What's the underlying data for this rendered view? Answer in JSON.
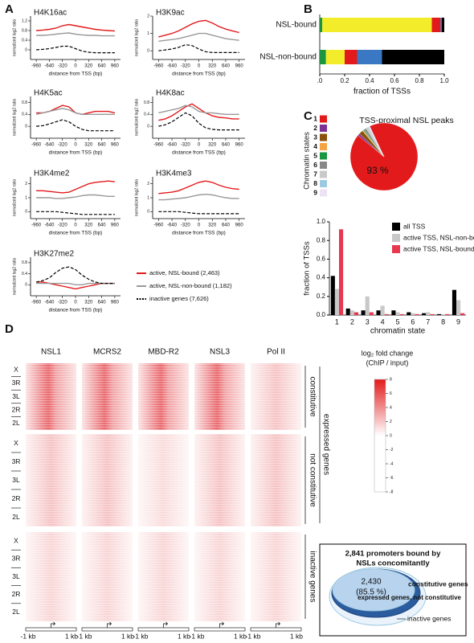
{
  "panel_labels": [
    "A",
    "B",
    "C",
    "D"
  ],
  "legend_a": [
    {
      "name": "active, NSL-bound (2,463)",
      "color": "#e31a1c",
      "dash": false
    },
    {
      "name": "active, NSL-non-bound (1,182)",
      "color": "#999999",
      "dash": false
    },
    {
      "name": "inactive genes (7,626)",
      "color": "#000000",
      "dash": true
    }
  ],
  "chart_data": [
    {
      "type": "line",
      "title": "H4K16ac",
      "y_label": "normalized log2 ratio",
      "x_label": "distance from TSS (bp)",
      "x": [
        -960,
        -800,
        -640,
        -480,
        -320,
        -160,
        0,
        160,
        320,
        480,
        640,
        800,
        960
      ],
      "xlim": [
        -1100,
        1100
      ],
      "xticks": [
        -960,
        -640,
        -320,
        0,
        320,
        640,
        960
      ],
      "ylim": [
        -0.4,
        1.4
      ],
      "yticks": [
        0,
        0.4,
        0.8,
        1.2
      ],
      "series": [
        {
          "color": "#e31a1c",
          "dash": false,
          "values": [
            0.8,
            0.82,
            0.85,
            0.9,
            1.0,
            1.05,
            1.0,
            0.95,
            0.9,
            0.85,
            0.82,
            0.8,
            0.78
          ]
        },
        {
          "color": "#999999",
          "dash": false,
          "values": [
            0.6,
            0.6,
            0.62,
            0.65,
            0.68,
            0.7,
            0.65,
            0.62,
            0.6,
            0.6,
            0.58,
            0.58,
            0.58
          ]
        },
        {
          "color": "#000000",
          "dash": true,
          "values": [
            0,
            0.02,
            0.05,
            0.1,
            0.15,
            0.15,
            0.05,
            -0.05,
            -0.1,
            -0.12,
            -0.12,
            -0.12,
            -0.12
          ]
        }
      ]
    },
    {
      "type": "line",
      "title": "H3K9ac",
      "y_label": "normalized log2 ratio",
      "x_label": "distance from TSS (bp)",
      "x": [
        -960,
        -800,
        -640,
        -480,
        -320,
        -160,
        0,
        160,
        320,
        480,
        640,
        800,
        960
      ],
      "xlim": [
        -1100,
        1100
      ],
      "xticks": [
        -960,
        -640,
        -320,
        0,
        320,
        640,
        960
      ],
      "ylim": [
        -0.5,
        2.0
      ],
      "yticks": [
        0,
        1,
        2
      ],
      "series": [
        {
          "color": "#e31a1c",
          "dash": false,
          "values": [
            0.8,
            0.9,
            1.0,
            1.15,
            1.35,
            1.55,
            1.7,
            1.75,
            1.6,
            1.4,
            1.25,
            1.15,
            1.05
          ]
        },
        {
          "color": "#999999",
          "dash": false,
          "values": [
            0.55,
            0.6,
            0.65,
            0.7,
            0.8,
            0.9,
            1.0,
            1.0,
            0.9,
            0.8,
            0.7,
            0.65,
            0.6
          ]
        },
        {
          "color": "#000000",
          "dash": true,
          "values": [
            0,
            0.05,
            0.1,
            0.2,
            0.35,
            0.3,
            0.1,
            -0.05,
            -0.1,
            -0.1,
            -0.1,
            -0.1,
            -0.1
          ]
        }
      ]
    },
    {
      "type": "line",
      "title": "H4K5ac",
      "y_label": "normalized log2 ratio",
      "x_label": "distance from TSS (bp)",
      "x": [
        -960,
        -800,
        -640,
        -480,
        -320,
        -160,
        0,
        160,
        320,
        480,
        640,
        800,
        960
      ],
      "xlim": [
        -1100,
        1100
      ],
      "xticks": [
        -960,
        -640,
        -320,
        0,
        320,
        640,
        960
      ],
      "ylim": [
        -0.4,
        1.0
      ],
      "yticks": [
        0,
        0.4,
        0.8
      ],
      "series": [
        {
          "color": "#e31a1c",
          "dash": false,
          "values": [
            0.45,
            0.45,
            0.5,
            0.6,
            0.7,
            0.65,
            0.45,
            0.4,
            0.45,
            0.5,
            0.5,
            0.5,
            0.45
          ]
        },
        {
          "color": "#999999",
          "dash": false,
          "values": [
            0.4,
            0.45,
            0.5,
            0.55,
            0.6,
            0.55,
            0.45,
            0.4,
            0.4,
            0.4,
            0.4,
            0.4,
            0.4
          ]
        },
        {
          "color": "#000000",
          "dash": true,
          "values": [
            0,
            0.02,
            0.08,
            0.15,
            0.22,
            0.15,
            0,
            -0.1,
            -0.15,
            -0.15,
            -0.15,
            -0.15,
            -0.15
          ]
        }
      ]
    },
    {
      "type": "line",
      "title": "H4K8ac",
      "y_label": "normalized log2 ratio",
      "x_label": "distance from TSS (bp)",
      "x": [
        -960,
        -800,
        -640,
        -480,
        -320,
        -160,
        0,
        160,
        320,
        480,
        640,
        800,
        960
      ],
      "xlim": [
        -1100,
        1100
      ],
      "xticks": [
        -960,
        -640,
        -320,
        0,
        320,
        640,
        960
      ],
      "ylim": [
        -0.4,
        1.0
      ],
      "yticks": [
        0,
        0.4,
        0.8
      ],
      "series": [
        {
          "color": "#e31a1c",
          "dash": false,
          "values": [
            0.2,
            0.25,
            0.35,
            0.5,
            0.65,
            0.75,
            0.6,
            0.45,
            0.35,
            0.3,
            0.28,
            0.25,
            0.25
          ]
        },
        {
          "color": "#999999",
          "dash": false,
          "values": [
            0.45,
            0.5,
            0.55,
            0.6,
            0.7,
            0.65,
            0.5,
            0.45,
            0.45,
            0.42,
            0.4,
            0.4,
            0.4
          ]
        },
        {
          "color": "#000000",
          "dash": true,
          "values": [
            0,
            0.05,
            0.15,
            0.3,
            0.45,
            0.35,
            0.1,
            -0.05,
            -0.1,
            -0.12,
            -0.12,
            -0.12,
            -0.12
          ]
        }
      ]
    },
    {
      "type": "line",
      "title": "H3K4me2",
      "y_label": "normalized log2 ratio",
      "x_label": "distance from TSS (bp)",
      "x": [
        -960,
        -800,
        -640,
        -480,
        -320,
        -160,
        0,
        160,
        320,
        480,
        640,
        800,
        960
      ],
      "xlim": [
        -1100,
        1100
      ],
      "xticks": [
        -960,
        -640,
        -320,
        0,
        320,
        640,
        960
      ],
      "ylim": [
        -0.5,
        2.5
      ],
      "yticks": [
        0,
        1,
        2
      ],
      "series": [
        {
          "color": "#e31a1c",
          "dash": false,
          "values": [
            1.5,
            1.5,
            1.45,
            1.4,
            1.35,
            1.4,
            1.6,
            1.8,
            2.0,
            2.1,
            2.15,
            2.2,
            2.15
          ]
        },
        {
          "color": "#999999",
          "dash": false,
          "values": [
            1.0,
            1.0,
            1.0,
            0.95,
            0.95,
            1.0,
            1.05,
            1.15,
            1.2,
            1.2,
            1.15,
            1.1,
            1.1
          ]
        },
        {
          "color": "#000000",
          "dash": true,
          "values": [
            0,
            0,
            0,
            0,
            -0.05,
            -0.1,
            -0.15,
            -0.2,
            -0.2,
            -0.2,
            -0.2,
            -0.2,
            -0.2
          ]
        }
      ]
    },
    {
      "type": "line",
      "title": "H3K4me3",
      "y_label": "normalized log2 ratio",
      "x_label": "distance from TSS (bp)",
      "x": [
        -960,
        -800,
        -640,
        -480,
        -320,
        -160,
        0,
        160,
        320,
        480,
        640,
        800,
        960
      ],
      "xlim": [
        -1100,
        1100
      ],
      "xticks": [
        -960,
        -640,
        -320,
        0,
        320,
        640,
        960
      ],
      "ylim": [
        -0.5,
        2.5
      ],
      "yticks": [
        0,
        1,
        2
      ],
      "series": [
        {
          "color": "#e31a1c",
          "dash": false,
          "values": [
            1.3,
            1.35,
            1.4,
            1.5,
            1.7,
            1.9,
            2.1,
            2.2,
            2.1,
            1.9,
            1.75,
            1.65,
            1.6
          ]
        },
        {
          "color": "#999999",
          "dash": false,
          "values": [
            0.85,
            0.85,
            0.9,
            0.95,
            1.0,
            1.1,
            1.2,
            1.25,
            1.2,
            1.1,
            1.0,
            0.95,
            0.95
          ]
        },
        {
          "color": "#000000",
          "dash": true,
          "values": [
            0,
            0,
            0,
            0,
            -0.05,
            -0.1,
            -0.15,
            -0.15,
            -0.15,
            -0.15,
            -0.15,
            -0.15,
            -0.15
          ]
        }
      ]
    },
    {
      "type": "line",
      "title": "H3K27me2",
      "y_label": "normalized log2 ratio",
      "x_label": "distance from TSS (bp)",
      "x": [
        -960,
        -800,
        -640,
        -480,
        -320,
        -160,
        0,
        160,
        320,
        480,
        640,
        800,
        960
      ],
      "xlim": [
        -1100,
        1100
      ],
      "xticks": [
        -960,
        -640,
        -320,
        0,
        320,
        640,
        960
      ],
      "ylim": [
        -0.4,
        1.0
      ],
      "yticks": [
        0,
        0.4,
        0.8
      ],
      "series": [
        {
          "color": "#e31a1c",
          "dash": false,
          "values": [
            0.1,
            0.1,
            0.05,
            0,
            -0.05,
            -0.1,
            -0.15,
            -0.1,
            -0.05,
            0,
            0.05,
            0.05,
            0.05
          ]
        },
        {
          "color": "#999999",
          "dash": false,
          "values": [
            0.05,
            0.05,
            0.05,
            0.05,
            0.05,
            0.05,
            0,
            0,
            0.05,
            0.05,
            0.05,
            0.05,
            0.05
          ]
        },
        {
          "color": "#000000",
          "dash": true,
          "values": [
            0.1,
            0.15,
            0.25,
            0.45,
            0.6,
            0.65,
            0.55,
            0.35,
            0.2,
            0.1,
            0.05,
            0.05,
            0.05
          ]
        }
      ]
    },
    {
      "type": "stacked_hbar",
      "x_label": "fraction of TSSs",
      "categories": [
        "NSL-bound",
        "NSL-non-bound"
      ],
      "xlim": [
        0,
        1
      ],
      "xticks": [
        {
          "value": 0,
          "label": ".0"
        },
        0.2,
        0.4,
        0.6,
        0.8,
        {
          "value": 1,
          "label": "1.0"
        }
      ],
      "series": [
        {
          "color": "#1a9641",
          "values": [
            0.02,
            0.05
          ]
        },
        {
          "color": "#f2ec2a",
          "values": [
            0.88,
            0.15
          ]
        },
        {
          "color": "#e31a1c",
          "values": [
            0.07,
            0.1
          ]
        },
        {
          "color": "#3b78c4",
          "values": [
            0.01,
            0.2
          ]
        },
        {
          "color": "#000000",
          "values": [
            0.02,
            0.5
          ]
        }
      ]
    },
    {
      "type": "pie",
      "title": "TSS-proximal NSL peaks",
      "legend_title": "Chromatin states",
      "categories": [
        "1",
        "2",
        "3",
        "4",
        "5",
        "6",
        "7",
        "8",
        "9"
      ],
      "colors": [
        "#e31a1c",
        "#7b3294",
        "#8c510a",
        "#f4a442",
        "#1a9641",
        "#888888",
        "#c9c9c9",
        "#9ecae1",
        "#ece4f4"
      ],
      "values": [
        93,
        1,
        2,
        0.5,
        0.5,
        1,
        1,
        0.5,
        0.5
      ],
      "value_labels": [
        "93 %",
        null,
        null,
        null,
        null,
        null,
        null,
        null,
        null
      ]
    },
    {
      "type": "bar",
      "x_label": "chromatin state",
      "y_label": "fraction of TSSs",
      "categories": [
        "1",
        "2",
        "3",
        "4",
        "5",
        "6",
        "7",
        "8",
        "9"
      ],
      "ylim": [
        0,
        1
      ],
      "yticks": [
        {
          "value": 0,
          "label": "0.0"
        },
        0.2,
        0.4,
        0.6,
        0.8,
        {
          "value": 1,
          "label": "1.0"
        }
      ],
      "series": [
        {
          "name": "all TSS",
          "color": "#000000",
          "values": [
            0.42,
            0.07,
            0.05,
            0.05,
            0.05,
            0.03,
            0.02,
            0.01,
            0.27
          ]
        },
        {
          "name": "active TSS, NSL-non-bound",
          "color": "#c8c8c8",
          "values": [
            0.28,
            0.05,
            0.2,
            0.1,
            0.03,
            0.02,
            0.03,
            0.01,
            0.16
          ]
        },
        {
          "name": "active TSS, NSL-bound",
          "color": "#e8384f",
          "values": [
            0.92,
            0.03,
            0.03,
            0.01,
            0.01,
            0.01,
            0.01,
            0.01,
            0.02
          ]
        }
      ]
    }
  ],
  "heatmap": {
    "columns": [
      "NSL1",
      "MCRS2",
      "MBD-R2",
      "NSL3",
      "Pol II"
    ],
    "row_labels": [
      "X",
      "3R",
      "3L",
      "2R",
      "2L"
    ],
    "groups": [
      "constitutive",
      "not constitutive",
      "inactive genes"
    ],
    "super_group": "expressed genes",
    "axis_labels": [
      "-1 kb",
      "1 kb"
    ],
    "colorbar": {
      "title": "log₂ fold change",
      "subtitle": "(ChIP / input)",
      "lim": [
        -8,
        8
      ],
      "ticks": [
        8,
        6,
        4,
        2,
        0,
        -2,
        -4,
        -6,
        -8
      ]
    }
  },
  "venn": {
    "title_lines": [
      "2,841 promoters bound by",
      "NSLs concomitantly"
    ],
    "count": "2,430",
    "percent": "(85.5 %)",
    "labels": [
      "constitutive genes",
      "expressed genes, not constitutive",
      "inactive genes"
    ]
  }
}
